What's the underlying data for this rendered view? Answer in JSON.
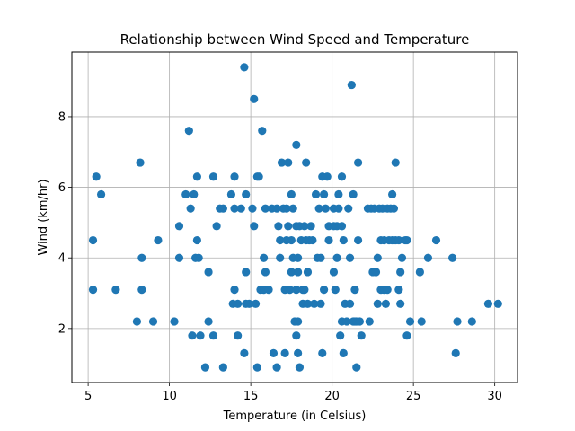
{
  "chart_data": {
    "type": "scatter",
    "title": "Relationship between Wind Speed and Temperature",
    "xlabel": "Temperature (in Celsius)",
    "ylabel": "Wind (km/hr)",
    "xlim": [
      4.0,
      31.4
    ],
    "ylim": [
      0.47,
      9.83
    ],
    "xticks": [
      5,
      10,
      15,
      20,
      25,
      30
    ],
    "yticks": [
      2,
      4,
      6,
      8
    ],
    "grid": true,
    "marker_color": "#1f77b4",
    "points": [
      [
        5.3,
        4.5
      ],
      [
        5.3,
        3.1
      ],
      [
        5.5,
        6.3
      ],
      [
        5.8,
        5.8
      ],
      [
        6.7,
        3.1
      ],
      [
        8.0,
        2.2
      ],
      [
        8.2,
        6.7
      ],
      [
        8.3,
        4.0
      ],
      [
        8.3,
        3.1
      ],
      [
        9.0,
        2.2
      ],
      [
        9.3,
        4.5
      ],
      [
        10.3,
        2.2
      ],
      [
        10.6,
        4.9
      ],
      [
        10.6,
        4.0
      ],
      [
        11.0,
        5.8
      ],
      [
        11.2,
        7.6
      ],
      [
        11.3,
        5.4
      ],
      [
        11.4,
        1.8
      ],
      [
        11.5,
        5.8
      ],
      [
        11.6,
        4.0
      ],
      [
        11.7,
        6.3
      ],
      [
        11.7,
        4.5
      ],
      [
        11.8,
        4.0
      ],
      [
        11.9,
        1.8
      ],
      [
        12.2,
        0.9
      ],
      [
        12.4,
        3.6
      ],
      [
        12.4,
        2.2
      ],
      [
        12.7,
        6.3
      ],
      [
        12.7,
        1.8
      ],
      [
        12.9,
        4.9
      ],
      [
        13.1,
        5.4
      ],
      [
        13.3,
        5.4
      ],
      [
        13.3,
        0.9
      ],
      [
        13.8,
        5.8
      ],
      [
        13.9,
        2.7
      ],
      [
        14.0,
        6.3
      ],
      [
        14.0,
        5.4
      ],
      [
        14.0,
        3.1
      ],
      [
        14.2,
        2.7
      ],
      [
        14.2,
        1.8
      ],
      [
        14.4,
        5.4
      ],
      [
        14.6,
        9.4
      ],
      [
        14.6,
        1.3
      ],
      [
        14.7,
        5.8
      ],
      [
        14.7,
        3.6
      ],
      [
        14.7,
        2.7
      ],
      [
        14.9,
        2.7
      ],
      [
        15.1,
        5.4
      ],
      [
        15.2,
        8.5
      ],
      [
        15.2,
        4.9
      ],
      [
        15.3,
        2.7
      ],
      [
        15.4,
        0.9
      ],
      [
        15.4,
        6.3
      ],
      [
        15.5,
        6.3
      ],
      [
        15.6,
        3.1
      ],
      [
        15.7,
        7.6
      ],
      [
        15.8,
        3.1
      ],
      [
        15.8,
        4.0
      ],
      [
        15.9,
        5.4
      ],
      [
        15.9,
        3.6
      ],
      [
        16.1,
        3.1
      ],
      [
        16.3,
        5.4
      ],
      [
        16.4,
        1.3
      ],
      [
        16.6,
        5.4
      ],
      [
        16.6,
        0.9
      ],
      [
        16.7,
        4.9
      ],
      [
        16.8,
        4.5
      ],
      [
        16.8,
        4.0
      ],
      [
        16.9,
        6.7
      ],
      [
        17.0,
        5.4
      ],
      [
        17.1,
        3.1
      ],
      [
        17.1,
        1.3
      ],
      [
        17.2,
        4.5
      ],
      [
        17.2,
        5.4
      ],
      [
        17.3,
        6.7
      ],
      [
        17.3,
        4.9
      ],
      [
        17.4,
        3.1
      ],
      [
        17.5,
        4.5
      ],
      [
        17.5,
        5.8
      ],
      [
        17.5,
        3.6
      ],
      [
        17.6,
        5.4
      ],
      [
        17.6,
        4.0
      ],
      [
        17.7,
        2.2
      ],
      [
        17.8,
        7.2
      ],
      [
        17.8,
        4.9
      ],
      [
        17.8,
        3.1
      ],
      [
        17.8,
        1.8
      ],
      [
        17.9,
        4.0
      ],
      [
        17.9,
        3.6
      ],
      [
        17.9,
        2.2
      ],
      [
        17.9,
        1.3
      ],
      [
        18.0,
        4.9
      ],
      [
        18.0,
        0.9
      ],
      [
        18.1,
        4.5
      ],
      [
        18.2,
        2.7
      ],
      [
        18.2,
        3.1
      ],
      [
        18.3,
        4.9
      ],
      [
        18.3,
        3.1
      ],
      [
        18.4,
        6.7
      ],
      [
        18.4,
        4.5
      ],
      [
        18.5,
        2.7
      ],
      [
        18.5,
        3.6
      ],
      [
        18.6,
        4.5
      ],
      [
        18.7,
        4.9
      ],
      [
        18.8,
        4.5
      ],
      [
        18.9,
        2.7
      ],
      [
        19.0,
        5.8
      ],
      [
        19.1,
        4.0
      ],
      [
        19.2,
        5.4
      ],
      [
        19.3,
        4.0
      ],
      [
        19.3,
        2.7
      ],
      [
        19.4,
        6.3
      ],
      [
        19.4,
        1.3
      ],
      [
        19.5,
        5.8
      ],
      [
        19.5,
        3.1
      ],
      [
        19.6,
        5.4
      ],
      [
        19.7,
        6.3
      ],
      [
        19.8,
        4.9
      ],
      [
        19.8,
        4.5
      ],
      [
        20.1,
        4.9
      ],
      [
        20.1,
        3.6
      ],
      [
        20.1,
        5.4
      ],
      [
        20.2,
        3.1
      ],
      [
        20.3,
        4.9
      ],
      [
        20.3,
        4.0
      ],
      [
        20.4,
        5.8
      ],
      [
        20.4,
        5.4
      ],
      [
        20.5,
        1.8
      ],
      [
        20.6,
        2.2
      ],
      [
        20.6,
        4.9
      ],
      [
        20.6,
        6.3
      ],
      [
        20.7,
        1.3
      ],
      [
        20.7,
        4.5
      ],
      [
        20.8,
        2.7
      ],
      [
        20.9,
        2.2
      ],
      [
        21.0,
        5.4
      ],
      [
        21.1,
        4.0
      ],
      [
        21.1,
        2.7
      ],
      [
        21.2,
        8.9
      ],
      [
        21.3,
        2.2
      ],
      [
        21.3,
        5.8
      ],
      [
        21.4,
        3.1
      ],
      [
        21.4,
        2.2
      ],
      [
        21.5,
        0.9
      ],
      [
        21.5,
        2.2
      ],
      [
        21.6,
        6.7
      ],
      [
        21.6,
        4.5
      ],
      [
        21.7,
        2.2
      ],
      [
        21.8,
        1.8
      ],
      [
        22.2,
        5.4
      ],
      [
        22.3,
        2.2
      ],
      [
        22.4,
        5.4
      ],
      [
        22.5,
        3.6
      ],
      [
        22.6,
        5.4
      ],
      [
        22.7,
        3.6
      ],
      [
        22.8,
        4.0
      ],
      [
        22.8,
        2.7
      ],
      [
        22.9,
        5.4
      ],
      [
        23.0,
        3.1
      ],
      [
        23.0,
        4.5
      ],
      [
        23.1,
        5.4
      ],
      [
        23.2,
        3.1
      ],
      [
        23.2,
        4.5
      ],
      [
        23.3,
        2.7
      ],
      [
        23.4,
        5.4
      ],
      [
        23.4,
        3.1
      ],
      [
        23.5,
        4.5
      ],
      [
        23.6,
        5.4
      ],
      [
        23.7,
        5.8
      ],
      [
        23.7,
        4.5
      ],
      [
        23.8,
        5.4
      ],
      [
        23.9,
        6.7
      ],
      [
        23.9,
        4.5
      ],
      [
        24.1,
        4.5
      ],
      [
        24.1,
        3.1
      ],
      [
        24.2,
        2.7
      ],
      [
        24.2,
        3.6
      ],
      [
        24.3,
        4.0
      ],
      [
        24.5,
        4.5
      ],
      [
        24.6,
        1.8
      ],
      [
        24.6,
        4.5
      ],
      [
        24.8,
        2.2
      ],
      [
        25.4,
        3.6
      ],
      [
        25.5,
        2.2
      ],
      [
        25.9,
        4.0
      ],
      [
        26.4,
        4.5
      ],
      [
        27.4,
        4.0
      ],
      [
        27.6,
        1.3
      ],
      [
        27.7,
        2.2
      ],
      [
        28.6,
        2.2
      ],
      [
        29.6,
        2.7
      ],
      [
        30.2,
        2.7
      ]
    ]
  }
}
